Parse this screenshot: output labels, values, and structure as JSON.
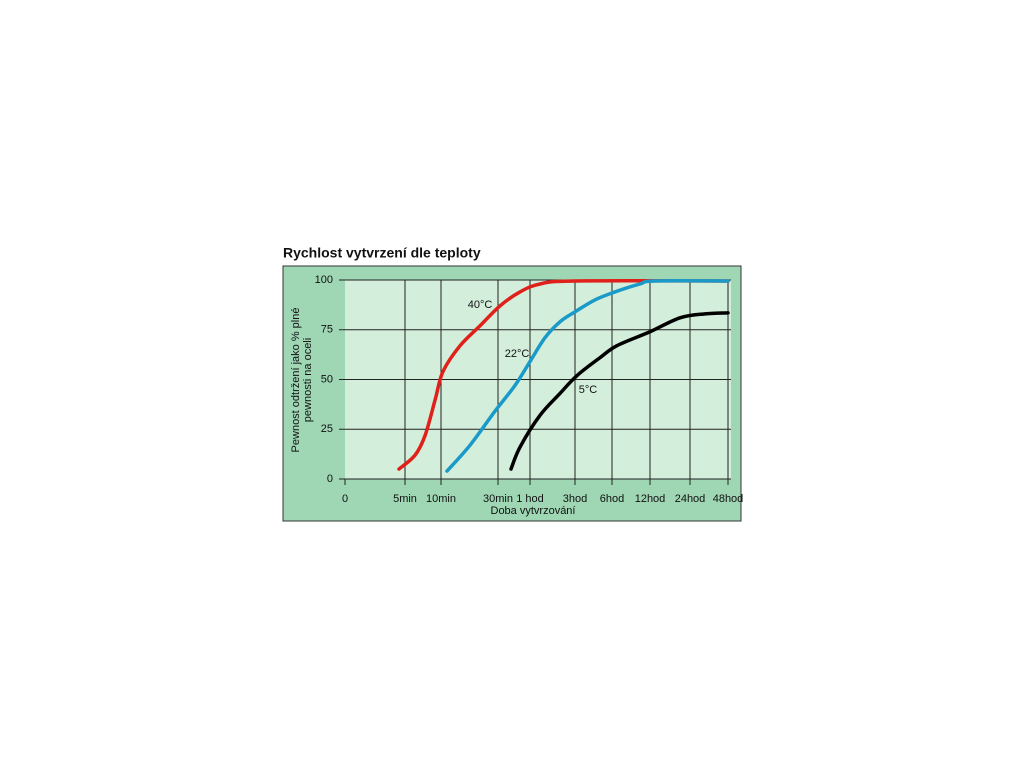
{
  "chart_data": {
    "type": "line",
    "title": "Rychlost vytvrzení dle teploty",
    "y_label": [
      "Pewnost odtržení jako % plné",
      "pewnosti na oceli"
    ],
    "x_label": "Doba vytvrzování",
    "xlim": [
      0,
      2880
    ],
    "xticks": [
      0,
      {
        "value": 5,
        "label": "5min"
      },
      {
        "value": 10,
        "label": "10min"
      },
      {
        "value": 30,
        "label": "30min"
      },
      {
        "value": 60,
        "label": "1 hod"
      },
      {
        "value": 180,
        "label": "3hod"
      },
      {
        "value": 360,
        "label": "6hod"
      },
      {
        "value": 720,
        "label": "12hod"
      },
      {
        "value": 1440,
        "label": "24hod"
      },
      {
        "value": 2880,
        "label": "48hod"
      }
    ],
    "ylim": [
      0,
      100
    ],
    "yticks": [
      0,
      25,
      50,
      75,
      100
    ],
    "grid": true,
    "series": [
      {
        "name": "40°C",
        "color": "#e0201a",
        "x": [
          4.5,
          6.4,
          7.8,
          9.2,
          10.7,
          16.7,
          23.7,
          31.9,
          50.6,
          86.7,
          180,
          2880
        ],
        "values": [
          5,
          12,
          22,
          40,
          54,
          67,
          77,
          87,
          94,
          98,
          99.5,
          99.5
        ]
      },
      {
        "name": "22°C",
        "color": "#1a9ac8",
        "x": [
          12.1,
          20.2,
          28.9,
          45.9,
          60,
          100,
          140,
          180,
          277,
          388,
          625,
          810,
          2880
        ],
        "values": [
          4,
          17,
          34,
          47,
          59,
          71,
          79,
          84,
          90,
          94,
          98,
          99.5,
          99.5
        ]
      },
      {
        "name": "5°C",
        "color": "#000000",
        "x": [
          42.2,
          50.6,
          86.7,
          140,
          190,
          302,
          407,
          720,
          1260,
          2008,
          2880
        ],
        "values": [
          5,
          16,
          32,
          43,
          52,
          61,
          67,
          74,
          81,
          83,
          83.5
        ]
      }
    ]
  }
}
